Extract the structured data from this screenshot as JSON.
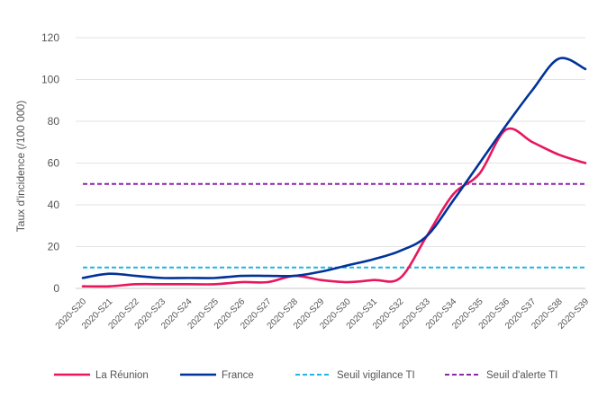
{
  "chart_data": {
    "type": "line",
    "title": "",
    "xlabel": "",
    "ylabel": "Taux d'incidence (/100 000)",
    "ylim": [
      0,
      120
    ],
    "yticks": [
      0,
      20,
      40,
      60,
      80,
      100,
      120
    ],
    "grid": "horizontal",
    "legend_position": "bottom",
    "categories": [
      "2020-S20",
      "2020-S21",
      "2020-S22",
      "2020-S23",
      "2020-S24",
      "2020-S25",
      "2020-S26",
      "2020-S27",
      "2020-S28",
      "2020-S29",
      "2020-S30",
      "2020-S31",
      "2020-S32",
      "2020-S33",
      "2020-S34",
      "2020-S35",
      "2020-S36",
      "2020-S37",
      "2020-S38",
      "2020-S39"
    ],
    "series": [
      {
        "name": "La Réunion",
        "color": "#e8175d",
        "style": "solid",
        "values": [
          1,
          1,
          2,
          2,
          2,
          2,
          3,
          3,
          6,
          4,
          3,
          4,
          5,
          25,
          45,
          55,
          76,
          70,
          64,
          60
        ]
      },
      {
        "name": "France",
        "color": "#003399",
        "style": "solid",
        "values": [
          5,
          7,
          6,
          5,
          5,
          5,
          6,
          6,
          6,
          8,
          11,
          14,
          18,
          25,
          42,
          60,
          78,
          95,
          110,
          105
        ]
      },
      {
        "name": "Seuil vigilance TI",
        "color": "#1fb5e8",
        "style": "dashed",
        "values": [
          10,
          10,
          10,
          10,
          10,
          10,
          10,
          10,
          10,
          10,
          10,
          10,
          10,
          10,
          10,
          10,
          10,
          10,
          10,
          10
        ]
      },
      {
        "name": "Seuil d'alerte TI",
        "color": "#8e24aa",
        "style": "dashed",
        "values": [
          50,
          50,
          50,
          50,
          50,
          50,
          50,
          50,
          50,
          50,
          50,
          50,
          50,
          50,
          50,
          50,
          50,
          50,
          50,
          50
        ]
      }
    ]
  }
}
